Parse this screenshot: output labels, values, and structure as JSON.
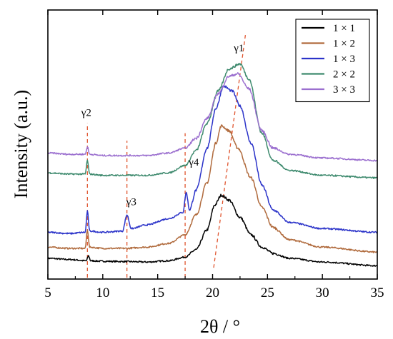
{
  "chart_data": {
    "type": "line",
    "xlabel": "2θ / °",
    "ylabel": "Intensity (a.u.)",
    "xlim": [
      5,
      35
    ],
    "x_ticks": [
      "5",
      "10",
      "15",
      "20",
      "25",
      "30",
      "35"
    ],
    "y_ticks": [],
    "y_units": "arbitrary",
    "grid": false,
    "legend_position": "top-right",
    "series": [
      {
        "name": "1 × 1",
        "color": "#000000",
        "baseline": 0.0,
        "points": [
          [
            5,
            0.055
          ],
          [
            7,
            0.05
          ],
          [
            8.5,
            0.045
          ],
          [
            8.7,
            0.065
          ],
          [
            8.9,
            0.045
          ],
          [
            10,
            0.043
          ],
          [
            12,
            0.042
          ],
          [
            14,
            0.04
          ],
          [
            16,
            0.045
          ],
          [
            17.5,
            0.06
          ],
          [
            18.5,
            0.09
          ],
          [
            19.5,
            0.17
          ],
          [
            20.2,
            0.27
          ],
          [
            20.8,
            0.31
          ],
          [
            21.5,
            0.29
          ],
          [
            22.5,
            0.22
          ],
          [
            23.5,
            0.15
          ],
          [
            24.5,
            0.1
          ],
          [
            25.5,
            0.075
          ],
          [
            27,
            0.055
          ],
          [
            30,
            0.04
          ],
          [
            35,
            0.025
          ]
        ]
      },
      {
        "name": "1 × 2",
        "color": "#b06a3c",
        "baseline": 0.16,
        "points": [
          [
            5,
            0.1
          ],
          [
            7,
            0.095
          ],
          [
            8.4,
            0.095
          ],
          [
            8.6,
            0.17
          ],
          [
            8.8,
            0.1
          ],
          [
            10,
            0.095
          ],
          [
            12,
            0.095
          ],
          [
            14,
            0.1
          ],
          [
            16,
            0.115
          ],
          [
            17.5,
            0.15
          ],
          [
            18.5,
            0.23
          ],
          [
            19.5,
            0.36
          ],
          [
            20.3,
            0.52
          ],
          [
            20.8,
            0.59
          ],
          [
            21.5,
            0.57
          ],
          [
            22.3,
            0.5
          ],
          [
            23.5,
            0.38
          ],
          [
            24.5,
            0.26
          ],
          [
            25.5,
            0.18
          ],
          [
            27,
            0.13
          ],
          [
            30,
            0.1
          ],
          [
            35,
            0.08
          ]
        ]
      },
      {
        "name": "1 × 3",
        "color": "#2b33c9",
        "baseline": 0.26,
        "points": [
          [
            5,
            0.16
          ],
          [
            7,
            0.155
          ],
          [
            8.4,
            0.16
          ],
          [
            8.6,
            0.245
          ],
          [
            8.8,
            0.165
          ],
          [
            10,
            0.16
          ],
          [
            11.8,
            0.165
          ],
          [
            12.2,
            0.23
          ],
          [
            12.6,
            0.175
          ],
          [
            14,
            0.19
          ],
          [
            16,
            0.215
          ],
          [
            17.3,
            0.24
          ],
          [
            17.6,
            0.32
          ],
          [
            17.9,
            0.25
          ],
          [
            18.5,
            0.33
          ],
          [
            19.5,
            0.5
          ],
          [
            20.3,
            0.66
          ],
          [
            21,
            0.75
          ],
          [
            21.8,
            0.73
          ],
          [
            22.5,
            0.67
          ],
          [
            23.5,
            0.52
          ],
          [
            24.5,
            0.35
          ],
          [
            25.5,
            0.25
          ],
          [
            27,
            0.2
          ],
          [
            30,
            0.175
          ],
          [
            35,
            0.16
          ]
        ]
      },
      {
        "name": "2 × 2",
        "color": "#3e8a6e",
        "baseline": 0.36,
        "points": [
          [
            5,
            0.4
          ],
          [
            7,
            0.395
          ],
          [
            8.4,
            0.395
          ],
          [
            8.6,
            0.45
          ],
          [
            8.8,
            0.395
          ],
          [
            10,
            0.39
          ],
          [
            12,
            0.39
          ],
          [
            14,
            0.39
          ],
          [
            16,
            0.4
          ],
          [
            17.5,
            0.43
          ],
          [
            18.5,
            0.49
          ],
          [
            19.5,
            0.6
          ],
          [
            20.5,
            0.73
          ],
          [
            21.5,
            0.82
          ],
          [
            22.5,
            0.84
          ],
          [
            23.3,
            0.78
          ],
          [
            24.5,
            0.56
          ],
          [
            25.5,
            0.45
          ],
          [
            27,
            0.41
          ],
          [
            30,
            0.39
          ],
          [
            35,
            0.38
          ]
        ]
      },
      {
        "name": "3 × 3",
        "color": "#9b6fcf",
        "baseline": 0.4,
        "points": [
          [
            5,
            0.48
          ],
          [
            7,
            0.475
          ],
          [
            8.4,
            0.475
          ],
          [
            8.6,
            0.505
          ],
          [
            8.8,
            0.475
          ],
          [
            10,
            0.47
          ],
          [
            12,
            0.47
          ],
          [
            14,
            0.47
          ],
          [
            16,
            0.48
          ],
          [
            17.5,
            0.5
          ],
          [
            18.5,
            0.54
          ],
          [
            19.5,
            0.62
          ],
          [
            20.5,
            0.72
          ],
          [
            21.5,
            0.79
          ],
          [
            22.3,
            0.8
          ],
          [
            23.3,
            0.74
          ],
          [
            24.5,
            0.57
          ],
          [
            25.5,
            0.5
          ],
          [
            27,
            0.475
          ],
          [
            30,
            0.46
          ],
          [
            35,
            0.45
          ]
        ]
      }
    ],
    "annotations": [
      {
        "name": "γ1",
        "x": 22.4,
        "y": 0.89
      },
      {
        "name": "γ2",
        "x": 8.5,
        "y": 0.63
      },
      {
        "name": "γ3",
        "x": 12.6,
        "y": 0.27
      },
      {
        "name": "γ4",
        "x": 18.3,
        "y": 0.43
      }
    ],
    "reference_lines": [
      {
        "x_bottom": 8.6,
        "x_top": 8.6,
        "y_bottom": 0.0,
        "y_top": 0.6
      },
      {
        "x_bottom": 12.2,
        "x_top": 12.2,
        "y_bottom": 0.0,
        "y_top": 0.53
      },
      {
        "x_bottom": 17.5,
        "x_top": 17.5,
        "y_bottom": 0.0,
        "y_top": 0.56
      },
      {
        "x_bottom": 20.1,
        "x_top": 23.0,
        "y_bottom": 0.04,
        "y_top": 0.96
      }
    ]
  }
}
